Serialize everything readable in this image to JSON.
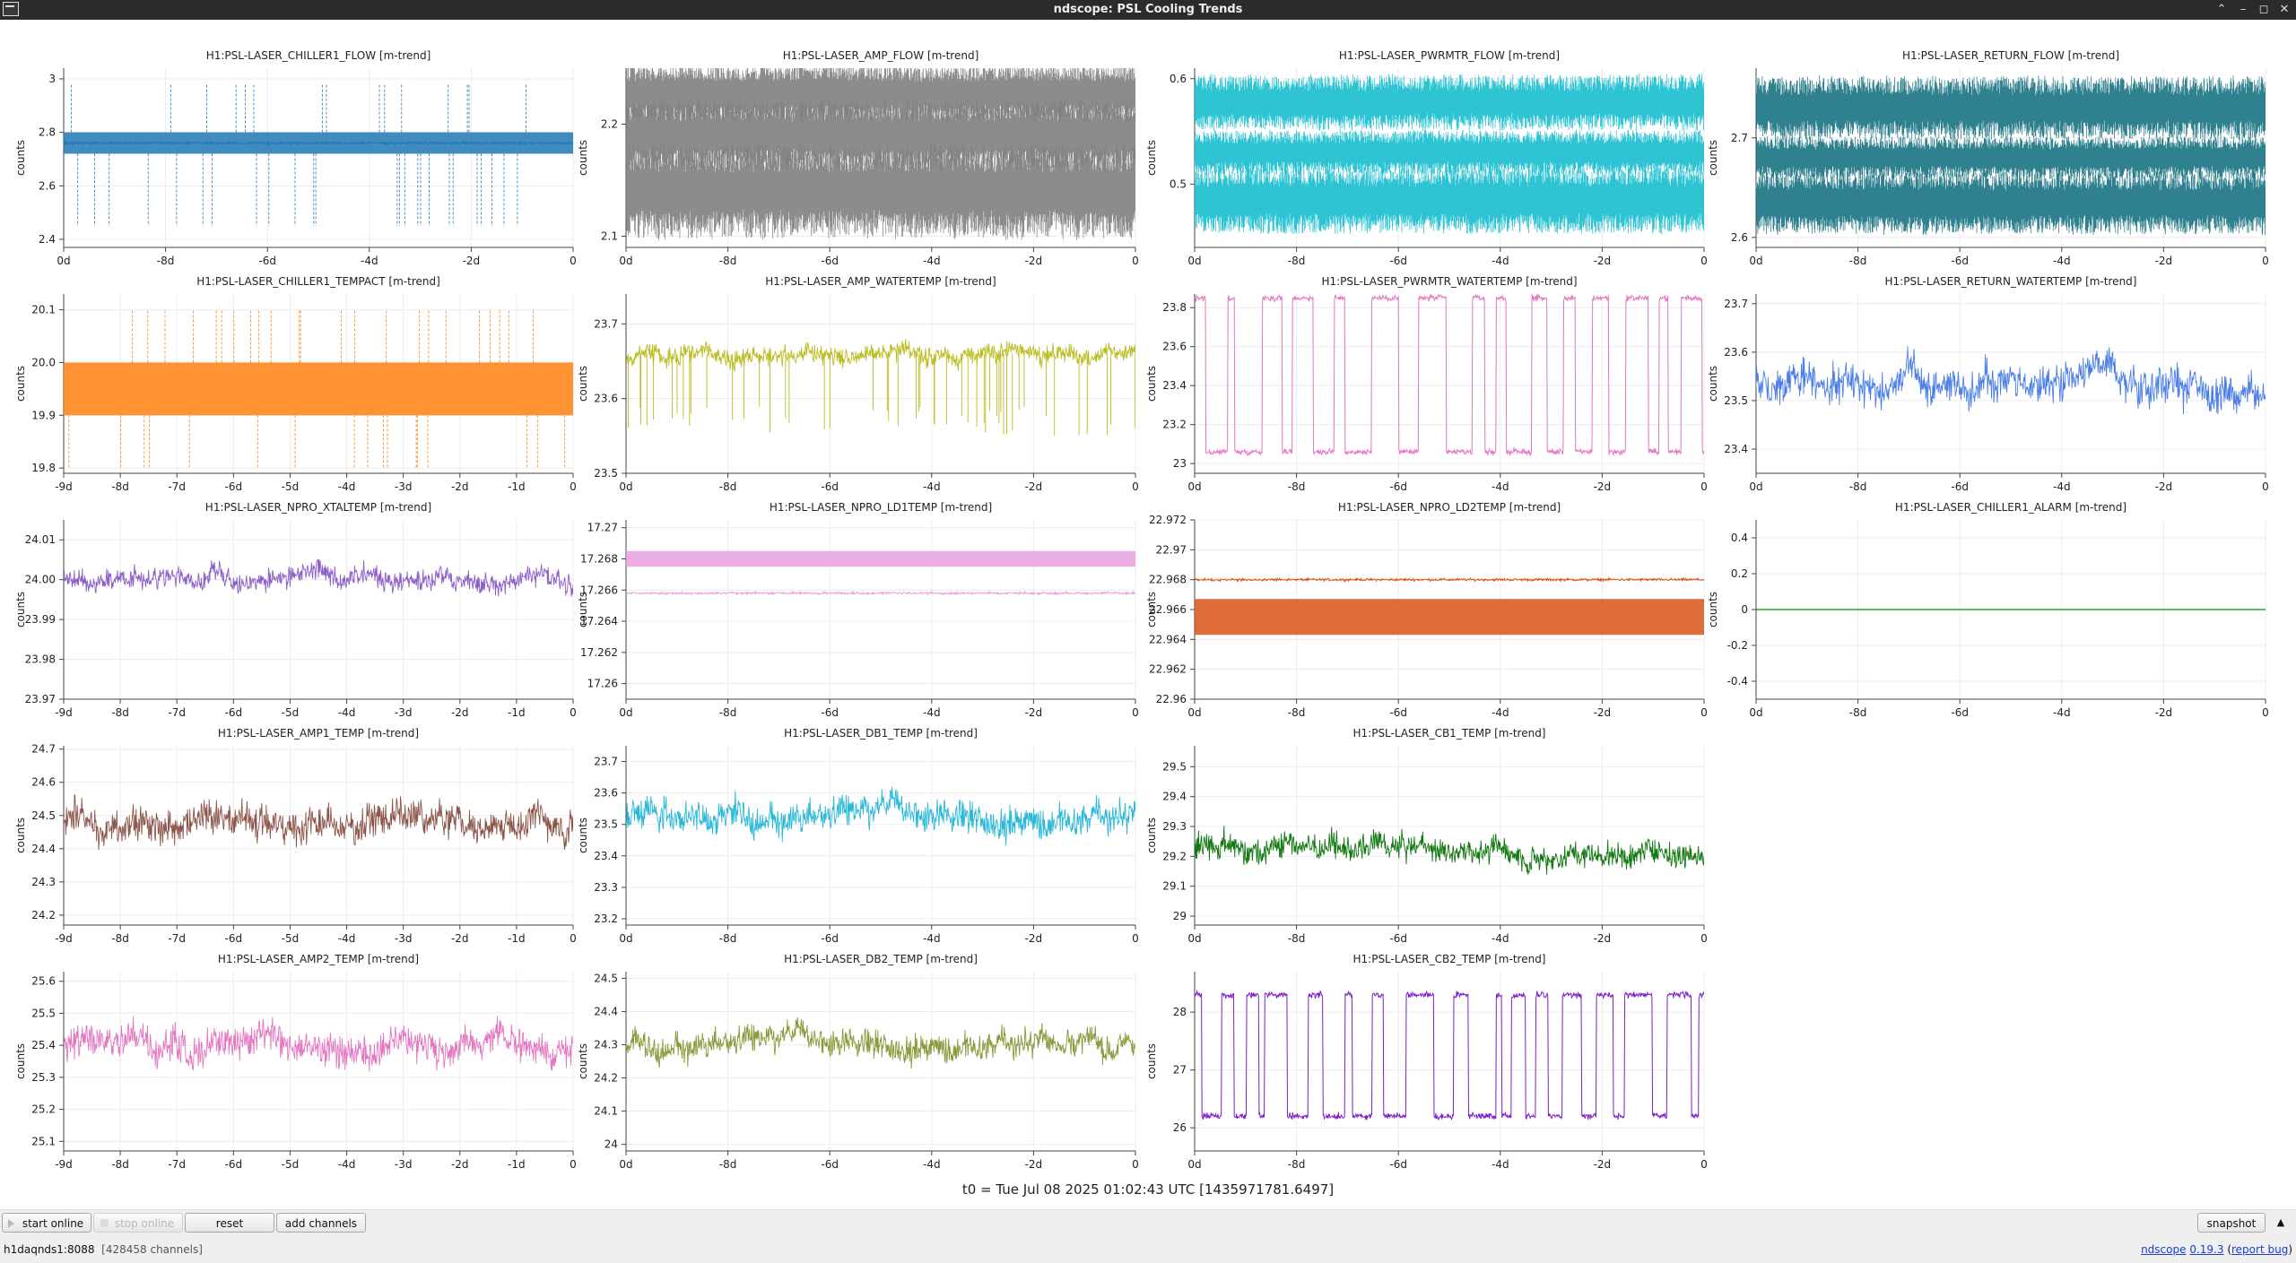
{
  "window": {
    "title": "ndscope: PSL Cooling Trends"
  },
  "t0_label": "t0 = Tue Jul 08 2025 01:02:43 UTC [1435971781.6497]",
  "controls": {
    "start_online": "start online",
    "stop_online": "stop online",
    "reset": "reset",
    "add_channels": "add channels",
    "snapshot": "snapshot",
    "expand_icon": "▲"
  },
  "status": {
    "server": "h1daqnds1:8088",
    "channels": "[428458 channels]"
  },
  "version": {
    "app": "ndscope",
    "number": "0.19.3",
    "report": "report bug"
  },
  "icons": {
    "window_close": "close-icon",
    "window_max": "maximize-icon",
    "window_min": "minimize-icon",
    "window_up": "chevron-up-icon"
  },
  "colors": {
    "titlebar": "#2b2b2b",
    "link": "#1a3fd6"
  },
  "x_ticks_9": [
    "-9d",
    "-8d",
    "-7d",
    "-6d",
    "-5d",
    "-4d",
    "-3d",
    "-2d",
    "-1d",
    "0"
  ],
  "x_ticks_5": [
    "0d",
    "-8d",
    "-6d",
    "-4d",
    "-2d",
    "0"
  ],
  "plots": [
    {
      "title": "H1:PSL-LASER_CHILLER1_FLOW [m-trend]",
      "ylabel": "counts",
      "color": "#1f77b4",
      "ticks": [
        "2.4",
        "2.6",
        "2.8",
        "3"
      ],
      "xticks": "x_ticks_5",
      "chart_data": {
        "type": "line",
        "ylim": [
          2.37,
          3.04
        ],
        "center": 2.76,
        "band": [
          2.72,
          2.8
        ],
        "spikes_down": 2.45,
        "spikes_up": 2.98
      }
    },
    {
      "title": "H1:PSL-LASER_AMP_FLOW [m-trend]",
      "ylabel": "counts",
      "color": "#7f7f7f",
      "ticks": [
        "2.1",
        "2.2"
      ],
      "xticks": "x_ticks_5",
      "chart_data": {
        "type": "line",
        "ylim": [
          2.09,
          2.25
        ],
        "bands": [
          [
            2.215,
            2.24
          ],
          [
            2.175,
            2.205
          ],
          [
            2.12,
            2.16
          ]
        ]
      }
    },
    {
      "title": "H1:PSL-LASER_PWRMTR_FLOW [m-trend]",
      "ylabel": "counts",
      "color": "#17becf",
      "ticks": [
        "0.5",
        "0.6"
      ],
      "xticks": "x_ticks_5",
      "chart_data": {
        "type": "line",
        "ylim": [
          0.44,
          0.61
        ],
        "bands": [
          [
            0.565,
            0.59
          ],
          [
            0.52,
            0.54
          ],
          [
            0.47,
            0.5
          ]
        ]
      }
    },
    {
      "title": "H1:PSL-LASER_RETURN_FLOW [m-trend]",
      "ylabel": "counts",
      "color": "#1a7383",
      "ticks": [
        "2.6",
        "2.7"
      ],
      "xticks": "x_ticks_5",
      "chart_data": {
        "type": "line",
        "ylim": [
          2.59,
          2.77
        ],
        "bands": [
          [
            2.715,
            2.745
          ],
          [
            2.67,
            2.69
          ],
          [
            2.62,
            2.65
          ]
        ]
      }
    },
    {
      "title": "H1:PSL-LASER_CHILLER1_TEMPACT [m-trend]",
      "ylabel": "counts",
      "color": "#ff7f0e",
      "ticks": [
        "19.8",
        "19.9",
        "20.0",
        "20.1"
      ],
      "xticks": "x_ticks_9",
      "chart_data": {
        "type": "line",
        "ylim": [
          19.79,
          20.13
        ],
        "band": [
          19.9,
          20.0
        ],
        "spikes_down": 19.8,
        "spikes_up": 20.1
      }
    },
    {
      "title": "H1:PSL-LASER_AMP_WATERTEMP [m-trend]",
      "ylabel": "counts",
      "color": "#bcbd22",
      "ticks": [
        "23.5",
        "23.6",
        "23.7"
      ],
      "xticks": "x_ticks_5",
      "chart_data": {
        "type": "line",
        "ylim": [
          23.5,
          23.74
        ],
        "center": 23.66,
        "spread": 0.03,
        "dips": 23.55
      }
    },
    {
      "title": "H1:PSL-LASER_PWRMTR_WATERTEMP [m-trend]",
      "ylabel": "counts",
      "color": "#e377c2",
      "ticks": [
        "23",
        "23.2",
        "23.4",
        "23.6",
        "23.8"
      ],
      "xticks": "x_ticks_5",
      "chart_data": {
        "type": "line",
        "ylim": [
          22.95,
          23.87
        ],
        "low": 23.06,
        "high": 23.85
      }
    },
    {
      "title": "H1:PSL-LASER_RETURN_WATERTEMP [m-trend]",
      "ylabel": "counts",
      "color": "#4c7fe6",
      "ticks": [
        "23.4",
        "23.5",
        "23.6",
        "23.7"
      ],
      "xticks": "x_ticks_5",
      "chart_data": {
        "type": "line",
        "ylim": [
          23.35,
          23.72
        ],
        "center": 23.53,
        "spread": 0.09
      }
    },
    {
      "title": "H1:PSL-LASER_NPRO_XTALTEMP [m-trend]",
      "ylabel": "counts",
      "color": "#8c5ec8",
      "ticks": [
        "23.97",
        "23.98",
        "23.99",
        "24.00",
        "24.01"
      ],
      "xticks": "x_ticks_9",
      "chart_data": {
        "type": "line",
        "ylim": [
          23.97,
          24.015
        ],
        "center": 24.0,
        "spread": 0.006
      }
    },
    {
      "title": "H1:PSL-LASER_NPRO_LD1TEMP [m-trend]",
      "ylabel": "counts",
      "color": "#e8a0df",
      "ticks": [
        "17.26",
        "17.262",
        "17.264",
        "17.266",
        "17.268",
        "17.27"
      ],
      "xticks": "x_ticks_5",
      "chart_data": {
        "type": "line",
        "ylim": [
          17.259,
          17.2705
        ],
        "band": [
          17.2675,
          17.2685
        ],
        "center": 17.2658
      }
    },
    {
      "title": "H1:PSL-LASER_NPRO_LD2TEMP [m-trend]",
      "ylabel": "counts",
      "color": "#d95319",
      "ticks": [
        "22.96",
        "22.962",
        "22.964",
        "22.966",
        "22.968",
        "22.97",
        "22.972"
      ],
      "xticks": "x_ticks_5",
      "chart_data": {
        "type": "line",
        "ylim": [
          22.96,
          22.972
        ],
        "band": [
          22.9643,
          22.9667
        ],
        "center": 22.968
      }
    },
    {
      "title": "H1:PSL-LASER_CHILLER1_ALARM [m-trend]",
      "ylabel": "counts",
      "color": "#2ca02c",
      "ticks": [
        "-0.4",
        "-0.2",
        "0",
        "0.2",
        "0.4"
      ],
      "xticks": "x_ticks_5",
      "chart_data": {
        "type": "line",
        "ylim": [
          -0.5,
          0.5
        ],
        "constant": 0
      }
    },
    {
      "title": "H1:PSL-LASER_AMP1_TEMP [m-trend]",
      "ylabel": "counts",
      "color": "#8c564b",
      "ticks": [
        "24.2",
        "24.3",
        "24.4",
        "24.5",
        "24.6",
        "24.7"
      ],
      "xticks": "x_ticks_9",
      "chart_data": {
        "type": "line",
        "ylim": [
          24.17,
          24.71
        ],
        "center": 24.48,
        "spread": 0.12
      }
    },
    {
      "title": "H1:PSL-LASER_DB1_TEMP [m-trend]",
      "ylabel": "counts",
      "color": "#29b8d8",
      "ticks": [
        "23.2",
        "23.3",
        "23.4",
        "23.5",
        "23.6",
        "23.7"
      ],
      "xticks": "x_ticks_5",
      "chart_data": {
        "type": "line",
        "ylim": [
          23.18,
          23.75
        ],
        "center": 23.52,
        "spread": 0.12
      }
    },
    {
      "title": "H1:PSL-LASER_CB1_TEMP [m-trend]",
      "ylabel": "counts",
      "color": "#127812",
      "ticks": [
        "29",
        "29.1",
        "29.2",
        "29.3",
        "29.4",
        "29.5"
      ],
      "xticks": "x_ticks_5",
      "chart_data": {
        "type": "line",
        "ylim": [
          28.97,
          29.57
        ],
        "center": 29.22,
        "spread": 0.1
      }
    },
    null,
    {
      "title": "H1:PSL-LASER_AMP2_TEMP [m-trend]",
      "ylabel": "counts",
      "color": "#e377c2",
      "ticks": [
        "25.1",
        "25.2",
        "25.3",
        "25.4",
        "25.5",
        "25.6"
      ],
      "xticks": "x_ticks_9",
      "chart_data": {
        "type": "line",
        "ylim": [
          25.07,
          25.63
        ],
        "center": 25.4,
        "spread": 0.12
      }
    },
    {
      "title": "H1:PSL-LASER_DB2_TEMP [m-trend]",
      "ylabel": "counts",
      "color": "#8a9a3c",
      "ticks": [
        "24",
        "24.1",
        "24.2",
        "24.3",
        "24.4",
        "24.5"
      ],
      "xticks": "x_ticks_5",
      "chart_data": {
        "type": "line",
        "ylim": [
          23.98,
          24.52
        ],
        "center": 24.3,
        "spread": 0.1
      }
    },
    {
      "title": "H1:PSL-LASER_CB2_TEMP [m-trend]",
      "ylabel": "counts",
      "color": "#7d1fc8",
      "ticks": [
        "26",
        "27",
        "28"
      ],
      "xticks": "x_ticks_5",
      "chart_data": {
        "type": "line",
        "ylim": [
          25.6,
          28.7
        ],
        "low": 26.2,
        "high": 28.3
      }
    },
    null
  ]
}
